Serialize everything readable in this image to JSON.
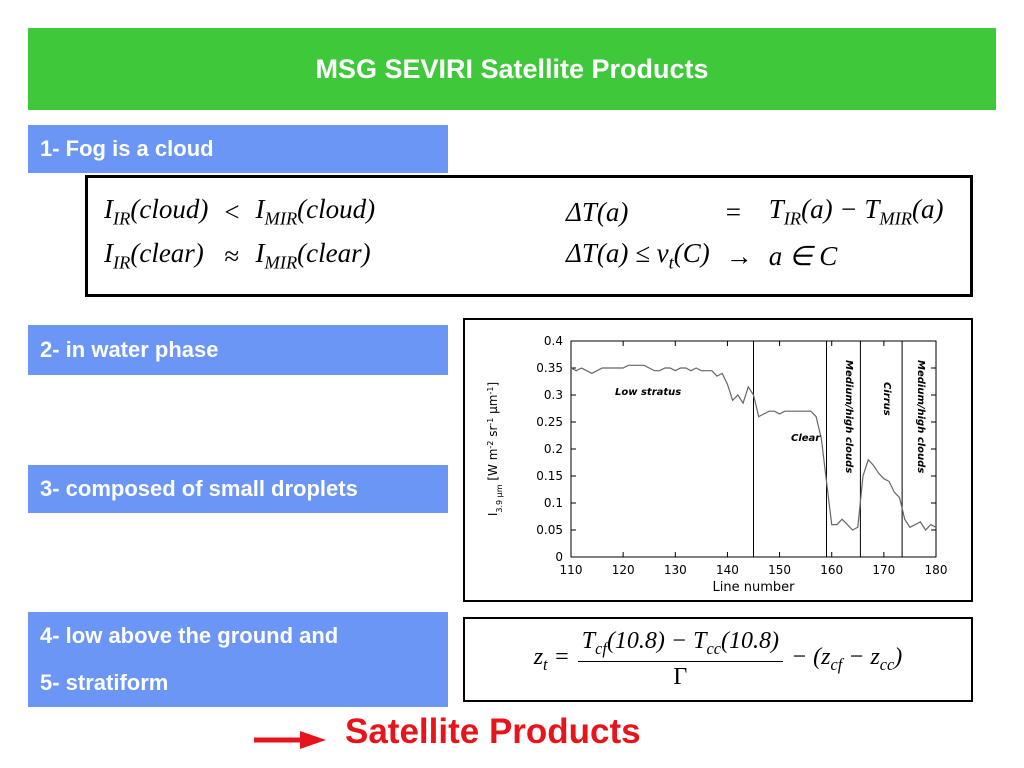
{
  "header": {
    "title": "MSG SEVIRI Satellite Products"
  },
  "items": [
    "1- Fog is a cloud",
    "2- in water phase",
    "3- composed of small droplets",
    "4- low above the ground and",
    "5- stratiform"
  ],
  "equations": {
    "left_column": [
      {
        "lhs": [
          {
            "t": "I"
          },
          {
            "t": "IR",
            "sub": true
          },
          {
            "t": "(cloud)"
          }
        ],
        "op": "<",
        "rhs": [
          {
            "t": "I"
          },
          {
            "t": "MIR",
            "sub": true
          },
          {
            "t": "(cloud)"
          }
        ]
      },
      {
        "lhs": [
          {
            "t": "I"
          },
          {
            "t": "IR",
            "sub": true
          },
          {
            "t": "(clear)"
          }
        ],
        "op": "≈",
        "rhs": [
          {
            "t": "I"
          },
          {
            "t": "MIR",
            "sub": true
          },
          {
            "t": "(clear)"
          }
        ]
      }
    ],
    "right_column": [
      {
        "lhs": [
          {
            "t": "ΔT(a)"
          }
        ],
        "op": "=",
        "rhs": [
          {
            "t": "T"
          },
          {
            "t": "IR",
            "sub": true
          },
          {
            "t": "(a) − T"
          },
          {
            "t": "MIR",
            "sub": true
          },
          {
            "t": "(a)"
          }
        ]
      },
      {
        "lhs": [
          {
            "t": "ΔT(a) ≤ v"
          },
          {
            "t": "t",
            "sub": true
          },
          {
            "t": "(C)"
          }
        ],
        "op": "→",
        "rhs": [
          {
            "t": "a ∈ C"
          }
        ]
      }
    ]
  },
  "height_formula": {
    "lhs": [
      {
        "t": "z"
      },
      {
        "t": "t",
        "sub": true
      },
      {
        "t": " ="
      }
    ],
    "numerator": [
      {
        "t": "T"
      },
      {
        "t": "cf",
        "sub": true
      },
      {
        "t": "(10.8) − T"
      },
      {
        "t": "cc",
        "sub": true
      },
      {
        "t": "(10.8)"
      }
    ],
    "denominator": [
      {
        "t": "Γ"
      }
    ],
    "rhs": [
      {
        "t": "− (z"
      },
      {
        "t": "cf",
        "sub": true
      },
      {
        "t": " − z"
      },
      {
        "t": "cc",
        "sub": true
      },
      {
        "t": ")"
      }
    ]
  },
  "footer": {
    "text": "Satellite Products"
  },
  "chart_data": {
    "type": "line",
    "x_label": "Line number",
    "y_label": [
      {
        "t": "I"
      },
      {
        "t": "3.9 μm",
        "sub": true
      },
      {
        "t": " [W m"
      },
      {
        "t": "-2",
        "sup": true
      },
      {
        "t": " sr"
      },
      {
        "t": "-1",
        "sup": true
      },
      {
        "t": " μm"
      },
      {
        "t": "-1",
        "sup": true
      },
      {
        "t": "]"
      }
    ],
    "x": [
      110,
      111,
      112,
      113,
      114,
      115,
      116,
      117,
      118,
      119,
      120,
      121,
      122,
      123,
      124,
      125,
      126,
      127,
      128,
      129,
      130,
      131,
      132,
      133,
      134,
      135,
      136,
      137,
      138,
      139,
      140,
      141,
      142,
      143,
      144,
      145,
      146,
      147,
      148,
      149,
      150,
      151,
      152,
      153,
      154,
      155,
      156,
      157,
      158,
      159,
      160,
      161,
      162,
      163,
      164,
      165,
      166,
      167,
      168,
      169,
      170,
      171,
      172,
      173,
      174,
      175,
      176,
      177,
      178,
      179,
      180
    ],
    "values": [
      0.35,
      0.345,
      0.35,
      0.345,
      0.34,
      0.345,
      0.35,
      0.35,
      0.35,
      0.35,
      0.35,
      0.355,
      0.355,
      0.355,
      0.355,
      0.35,
      0.345,
      0.345,
      0.35,
      0.35,
      0.345,
      0.35,
      0.35,
      0.345,
      0.35,
      0.345,
      0.345,
      0.345,
      0.335,
      0.34,
      0.32,
      0.29,
      0.3,
      0.285,
      0.315,
      0.3,
      0.26,
      0.265,
      0.27,
      0.27,
      0.265,
      0.27,
      0.27,
      0.27,
      0.27,
      0.27,
      0.27,
      0.26,
      0.22,
      0.14,
      0.06,
      0.06,
      0.07,
      0.06,
      0.05,
      0.055,
      0.15,
      0.18,
      0.17,
      0.155,
      0.145,
      0.14,
      0.12,
      0.11,
      0.07,
      0.055,
      0.06,
      0.065,
      0.05,
      0.06,
      0.055
    ],
    "color": "#666666",
    "xlim": [
      110,
      180
    ],
    "ylim": [
      0,
      0.4
    ],
    "xticks": [
      110,
      120,
      130,
      140,
      150,
      160,
      170,
      180
    ],
    "yticks": [
      0,
      0.05,
      0.1,
      0.15,
      0.2,
      0.25,
      0.3,
      0.35,
      0.4
    ],
    "vlines": [
      145,
      159,
      165.5,
      173.5
    ],
    "annotations": [
      "Low stratus",
      "Clear",
      "Medium/high clouds",
      "Cirrus",
      "Medium/high clouds"
    ]
  }
}
